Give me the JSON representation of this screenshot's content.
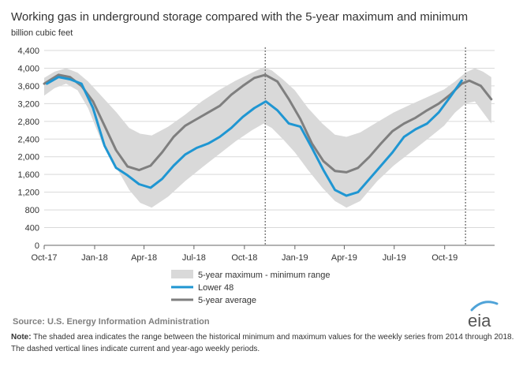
{
  "source": "Source: U.S. Energy Information Administration",
  "note_label": "Note:",
  "note_text": "The shaded area indicates the range between the historical minimum and maximum values for the weekly series from 2014 through 2018. The dashed vertical lines indicate current and year-ago weekly periods.",
  "logo_text": "eia",
  "colors": {
    "band": "#d9d9d9",
    "lower48": "#1f96d2",
    "avg": "#7f7f7f",
    "grid": "#d9d9d9",
    "logo_arc": "#4fa3d8"
  },
  "chart_data": {
    "type": "line",
    "title": "Working gas in underground  storage compared with the 5-year maximum  and minimum",
    "ylabel": "billion cubic feet",
    "xlabel": "",
    "ylim": [
      0,
      4400
    ],
    "yticks": [
      0,
      400,
      800,
      1200,
      1600,
      2000,
      2400,
      2800,
      3200,
      3600,
      4000,
      4400
    ],
    "xlim": [
      "2017-10-01",
      "2019-12-31"
    ],
    "xticks": [
      {
        "date": "2017-10-01",
        "label": "Oct-17"
      },
      {
        "date": "2018-01-01",
        "label": "Jan-18"
      },
      {
        "date": "2018-04-01",
        "label": "Apr-18"
      },
      {
        "date": "2018-07-01",
        "label": "Jul-18"
      },
      {
        "date": "2018-10-01",
        "label": "Oct-18"
      },
      {
        "date": "2019-01-01",
        "label": "Jan-19"
      },
      {
        "date": "2019-04-01",
        "label": "Apr-19"
      },
      {
        "date": "2019-07-01",
        "label": "Jul-19"
      },
      {
        "date": "2019-10-01",
        "label": "Oct-19"
      }
    ],
    "grid": "horizontal",
    "legend_position": "bottom",
    "vlines": [
      "2018-11-08",
      "2019-11-08"
    ],
    "band": {
      "name": "5-year maximum - minimum range",
      "x": [
        "2017-10-01",
        "2017-10-20",
        "2017-11-10",
        "2017-12-01",
        "2017-12-20",
        "2018-01-15",
        "2018-02-10",
        "2018-03-05",
        "2018-03-25",
        "2018-04-15",
        "2018-05-15",
        "2018-06-15",
        "2018-07-15",
        "2018-08-15",
        "2018-09-15",
        "2018-10-15",
        "2018-11-05",
        "2018-11-20",
        "2018-12-10",
        "2019-01-01",
        "2019-01-25",
        "2019-02-20",
        "2019-03-15",
        "2019-04-05",
        "2019-04-30",
        "2019-05-31",
        "2019-06-30",
        "2019-07-31",
        "2019-08-31",
        "2019-09-30",
        "2019-10-20",
        "2019-11-08",
        "2019-11-25",
        "2019-12-10",
        "2019-12-25"
      ],
      "max": [
        3780,
        3920,
        4000,
        3900,
        3700,
        3350,
        3000,
        2650,
        2520,
        2480,
        2680,
        2950,
        3250,
        3500,
        3720,
        3900,
        4020,
        3950,
        3750,
        3500,
        3100,
        2750,
        2500,
        2450,
        2550,
        2780,
        3000,
        3180,
        3350,
        3520,
        3700,
        3900,
        4000,
        3920,
        3800
      ],
      "min": [
        3380,
        3550,
        3650,
        3500,
        3100,
        2300,
        1750,
        1250,
        960,
        850,
        1100,
        1450,
        1750,
        2050,
        2350,
        2600,
        2750,
        2650,
        2400,
        2100,
        1700,
        1300,
        1000,
        850,
        1000,
        1450,
        1800,
        2100,
        2400,
        2700,
        3000,
        3200,
        3250,
        3000,
        2750
      ]
    },
    "series": [
      {
        "name": "Lower 48",
        "x": [
          "2017-10-06",
          "2017-10-27",
          "2017-11-17",
          "2017-12-08",
          "2017-12-29",
          "2018-01-19",
          "2018-02-09",
          "2018-03-02",
          "2018-03-23",
          "2018-04-13",
          "2018-05-04",
          "2018-05-25",
          "2018-06-15",
          "2018-07-06",
          "2018-07-27",
          "2018-08-17",
          "2018-09-07",
          "2018-09-28",
          "2018-10-19",
          "2018-11-09",
          "2018-11-30",
          "2018-12-21",
          "2019-01-11",
          "2019-02-01",
          "2019-02-22",
          "2019-03-15",
          "2019-04-05",
          "2019-04-26",
          "2019-05-17",
          "2019-06-07",
          "2019-06-28",
          "2019-07-19",
          "2019-08-09",
          "2019-08-30",
          "2019-09-20",
          "2019-10-11",
          "2019-11-01"
        ],
        "y": [
          3650,
          3800,
          3750,
          3650,
          3100,
          2250,
          1750,
          1580,
          1380,
          1300,
          1500,
          1800,
          2050,
          2200,
          2300,
          2450,
          2650,
          2900,
          3100,
          3250,
          3050,
          2750,
          2680,
          2200,
          1700,
          1250,
          1120,
          1200,
          1500,
          1800,
          2100,
          2450,
          2620,
          2750,
          3000,
          3350,
          3720
        ]
      },
      {
        "name": "5-year average",
        "x": [
          "2017-10-01",
          "2017-10-27",
          "2017-11-17",
          "2017-12-08",
          "2017-12-29",
          "2018-01-19",
          "2018-02-09",
          "2018-03-02",
          "2018-03-23",
          "2018-04-13",
          "2018-05-04",
          "2018-05-25",
          "2018-06-15",
          "2018-07-06",
          "2018-07-27",
          "2018-08-17",
          "2018-09-07",
          "2018-09-28",
          "2018-10-19",
          "2018-11-08",
          "2018-11-30",
          "2018-12-21",
          "2019-01-11",
          "2019-02-01",
          "2019-02-22",
          "2019-03-15",
          "2019-04-05",
          "2019-04-26",
          "2019-05-17",
          "2019-06-07",
          "2019-06-28",
          "2019-07-19",
          "2019-08-09",
          "2019-08-30",
          "2019-09-20",
          "2019-10-11",
          "2019-11-01",
          "2019-11-15",
          "2019-12-06",
          "2019-12-25"
        ],
        "y": [
          3650,
          3850,
          3800,
          3600,
          3250,
          2700,
          2150,
          1780,
          1700,
          1800,
          2100,
          2450,
          2700,
          2850,
          3000,
          3150,
          3400,
          3600,
          3780,
          3850,
          3700,
          3300,
          2850,
          2300,
          1900,
          1680,
          1650,
          1750,
          2000,
          2300,
          2580,
          2750,
          2880,
          3050,
          3200,
          3400,
          3650,
          3720,
          3600,
          3300
        ]
      }
    ]
  }
}
